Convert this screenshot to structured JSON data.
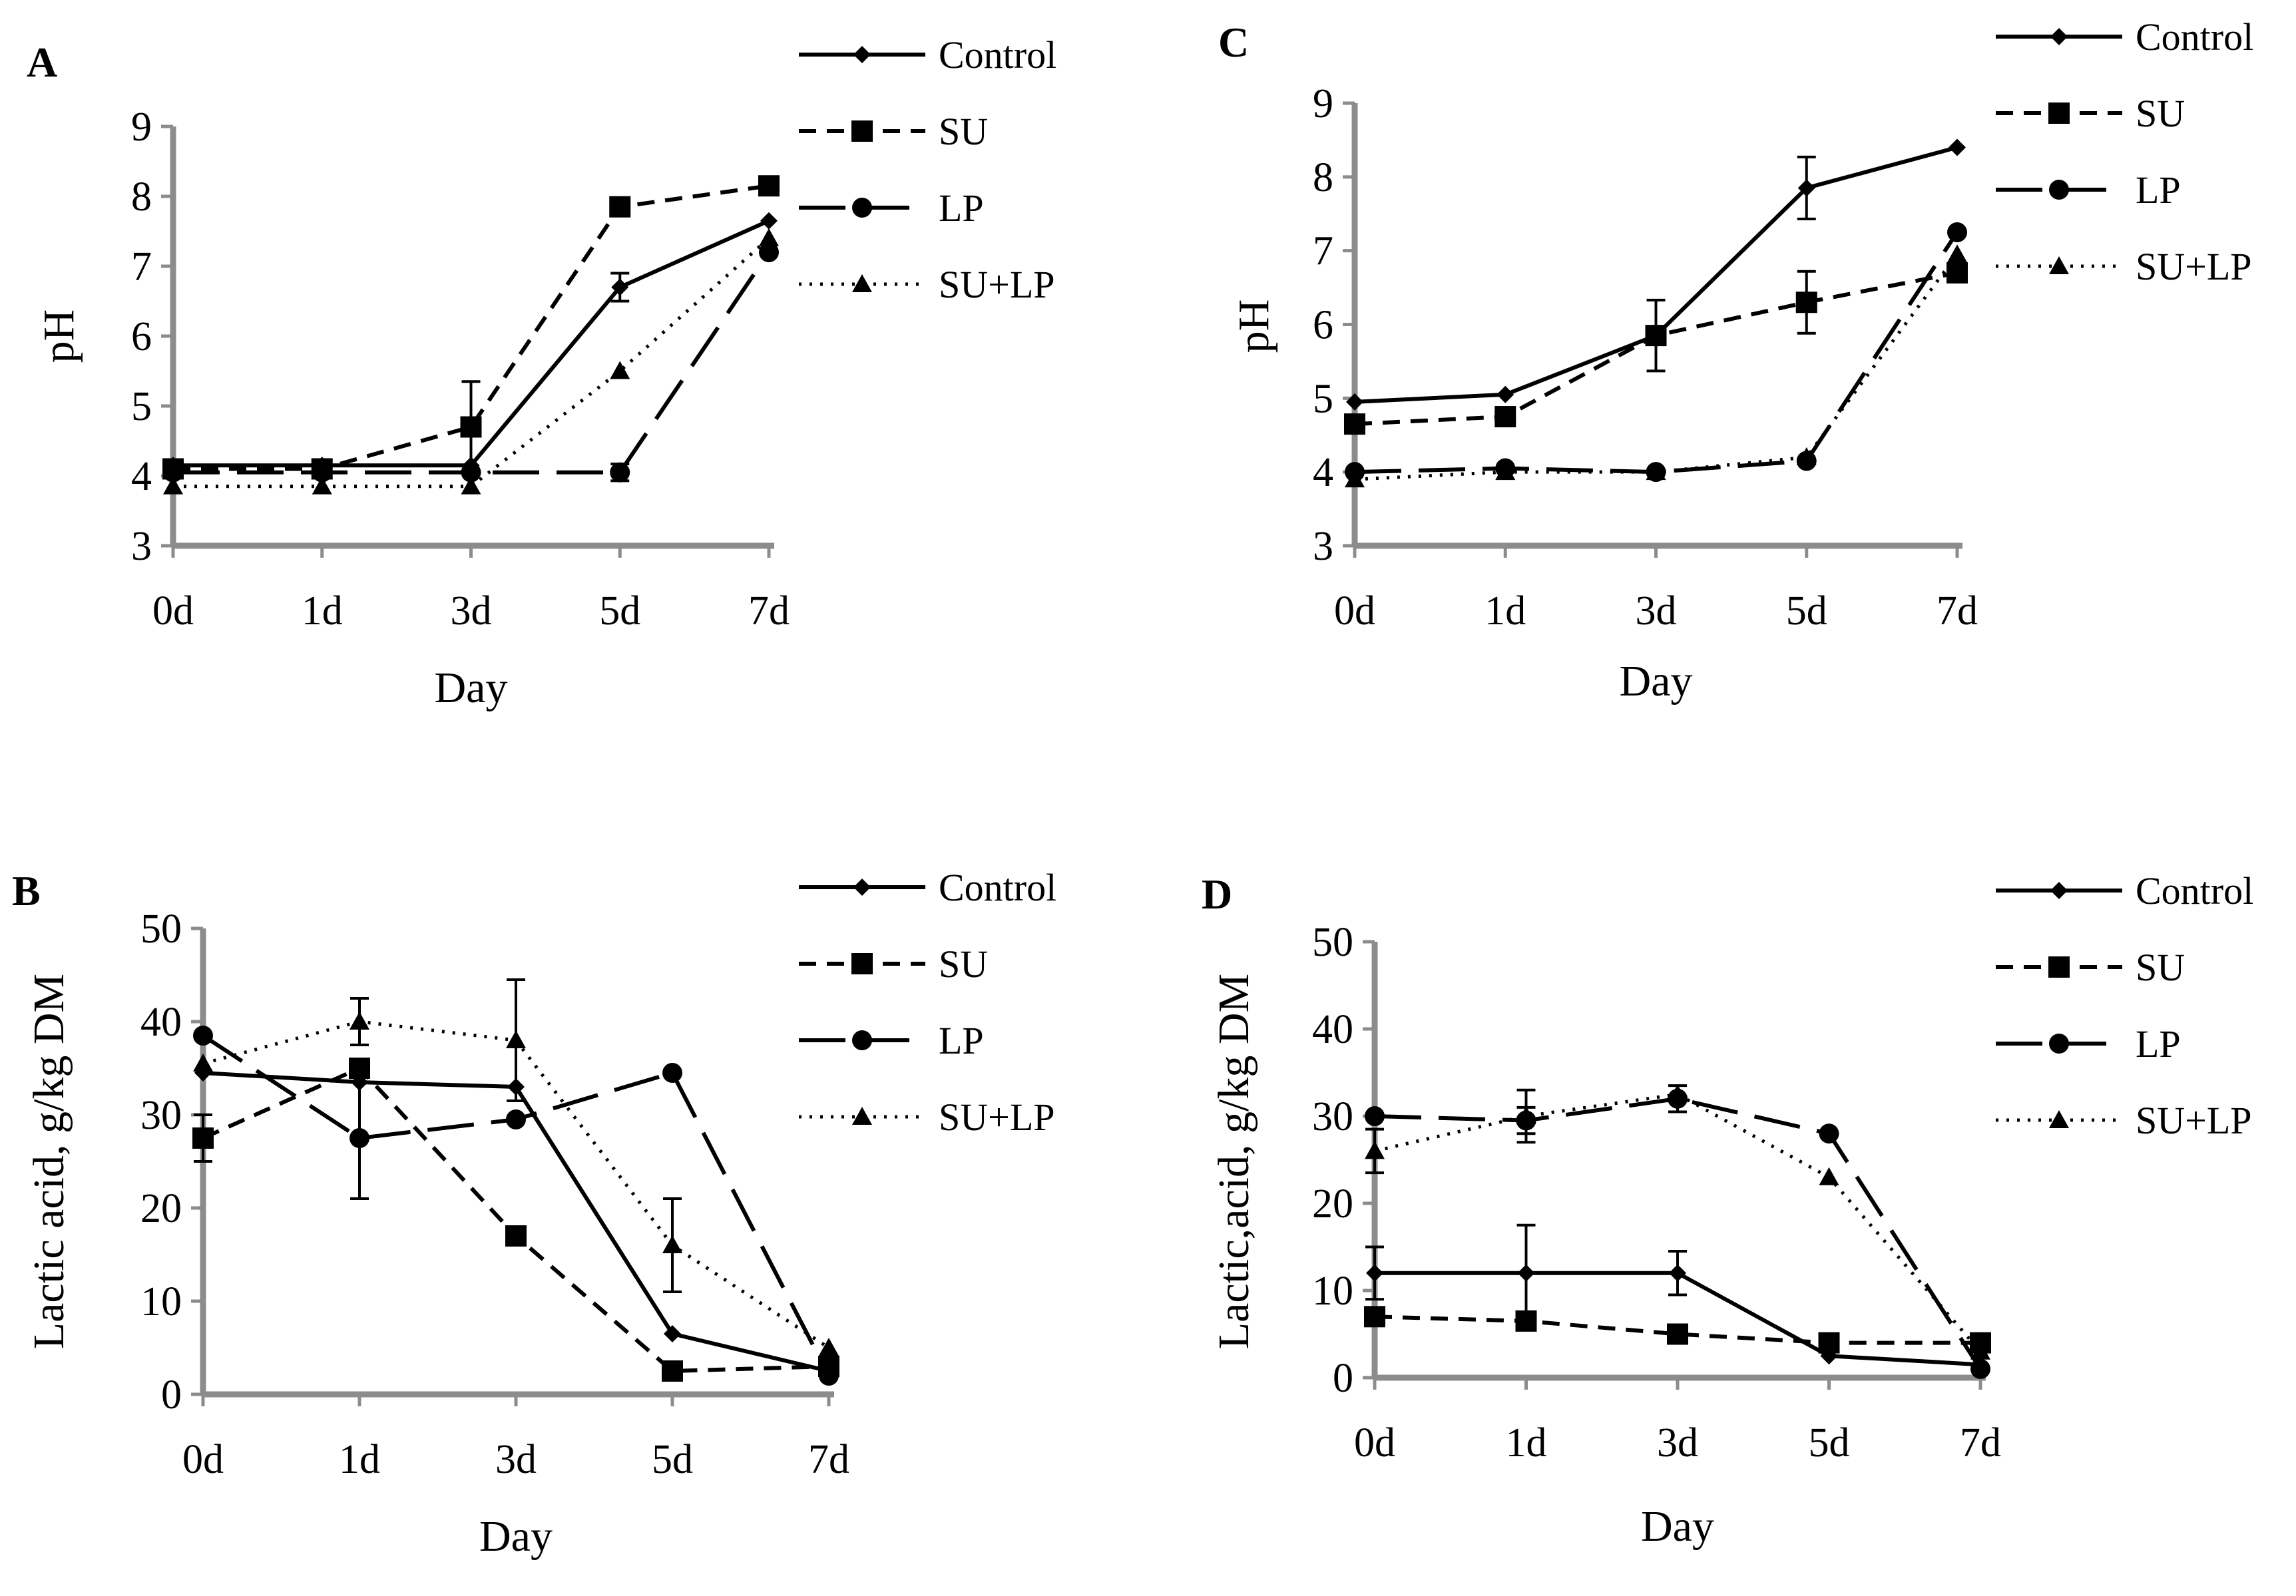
{
  "figure": {
    "legend_labels": [
      "Control",
      "SU",
      "LP",
      "SU+LP"
    ]
  },
  "chart_data": [
    {
      "panel": "A",
      "type": "line",
      "xlabel": "Day",
      "ylabel": "pH",
      "categories": [
        "0d",
        "1d",
        "3d",
        "5d",
        "7d"
      ],
      "ylim": [
        3,
        9
      ],
      "yticks": [
        3,
        4,
        5,
        6,
        7,
        8,
        9
      ],
      "grid": false,
      "legend_position": "top-right",
      "series": [
        {
          "name": "Control",
          "values": [
            4.15,
            4.15,
            4.15,
            6.7,
            7.65
          ],
          "errors": [
            0,
            0,
            0,
            0.2,
            0
          ]
        },
        {
          "name": "SU",
          "values": [
            4.1,
            4.1,
            4.7,
            7.85,
            8.15
          ],
          "errors": [
            0,
            0,
            0.65,
            0,
            0
          ]
        },
        {
          "name": "LP",
          "values": [
            4.05,
            4.05,
            4.05,
            4.05,
            7.2
          ],
          "errors": [
            0,
            0,
            0,
            0.12,
            0
          ]
        },
        {
          "name": "SU+LP",
          "values": [
            3.85,
            3.85,
            3.85,
            5.5,
            7.4
          ],
          "errors": [
            0,
            0,
            0,
            0,
            0
          ]
        }
      ]
    },
    {
      "panel": "B",
      "type": "line",
      "xlabel": "Day",
      "ylabel": "Lactic acid, g/kg DM",
      "categories": [
        "0d",
        "1d",
        "3d",
        "5d",
        "7d"
      ],
      "ylim": [
        0,
        50
      ],
      "yticks": [
        0,
        10,
        20,
        30,
        40,
        50
      ],
      "grid": false,
      "legend_position": "top-right",
      "series": [
        {
          "name": "Control",
          "values": [
            34.5,
            33.5,
            33.0,
            6.5,
            2.5
          ],
          "errors": [
            0,
            0,
            0,
            0,
            0
          ]
        },
        {
          "name": "SU",
          "values": [
            27.5,
            35.0,
            17.0,
            2.5,
            3.0
          ],
          "errors": [
            2.5,
            0,
            0,
            0,
            0
          ]
        },
        {
          "name": "LP",
          "values": [
            38.5,
            27.5,
            29.5,
            34.5,
            2.0
          ],
          "errors": [
            0,
            6.5,
            0,
            0,
            0
          ]
        },
        {
          "name": "SU+LP",
          "values": [
            35.5,
            40.0,
            38.0,
            16.0,
            5.0
          ],
          "errors": [
            0,
            2.5,
            6.5,
            5.0,
            0
          ]
        }
      ]
    },
    {
      "panel": "C",
      "type": "line",
      "xlabel": "Day",
      "ylabel": "pH",
      "categories": [
        "0d",
        "1d",
        "3d",
        "5d",
        "7d"
      ],
      "ylim": [
        3,
        9
      ],
      "yticks": [
        3,
        4,
        5,
        6,
        7,
        8,
        9
      ],
      "grid": false,
      "legend_position": "top-right",
      "series": [
        {
          "name": "Control",
          "values": [
            4.95,
            5.05,
            5.85,
            7.85,
            8.4
          ],
          "errors": [
            0,
            0,
            0,
            0.42,
            0
          ]
        },
        {
          "name": "SU",
          "values": [
            4.65,
            4.75,
            5.85,
            6.3,
            6.7
          ],
          "errors": [
            0,
            0,
            0.48,
            0.42,
            0
          ]
        },
        {
          "name": "LP",
          "values": [
            4.0,
            4.05,
            4.0,
            4.15,
            7.25
          ],
          "errors": [
            0,
            0,
            0,
            0,
            0
          ]
        },
        {
          "name": "SU+LP",
          "values": [
            3.9,
            4.0,
            4.0,
            4.2,
            6.95
          ],
          "errors": [
            0,
            0,
            0,
            0,
            0
          ]
        }
      ]
    },
    {
      "panel": "D",
      "type": "line",
      "xlabel": "Day",
      "ylabel": "Lactic,acid, g/kg DM",
      "categories": [
        "0d",
        "1d",
        "3d",
        "5d",
        "7d"
      ],
      "ylim": [
        0,
        50
      ],
      "yticks": [
        0,
        10,
        20,
        30,
        40,
        50
      ],
      "grid": false,
      "legend_position": "top-right",
      "series": [
        {
          "name": "Control",
          "values": [
            12.0,
            12.0,
            12.0,
            2.5,
            1.5
          ],
          "errors": [
            3.0,
            5.5,
            2.5,
            0,
            0
          ]
        },
        {
          "name": "SU",
          "values": [
            7.0,
            6.5,
            5.0,
            4.0,
            4.0
          ],
          "errors": [
            0,
            0,
            0,
            0,
            0
          ]
        },
        {
          "name": "LP",
          "values": [
            30.0,
            29.5,
            32.0,
            28.0,
            1.0
          ],
          "errors": [
            0,
            1.5,
            1.5,
            0,
            0
          ]
        },
        {
          "name": "SU+LP",
          "values": [
            26.0,
            30.0,
            32.5,
            23.0,
            3.0
          ],
          "errors": [
            2.5,
            3.0,
            0,
            0,
            0
          ]
        }
      ]
    }
  ]
}
